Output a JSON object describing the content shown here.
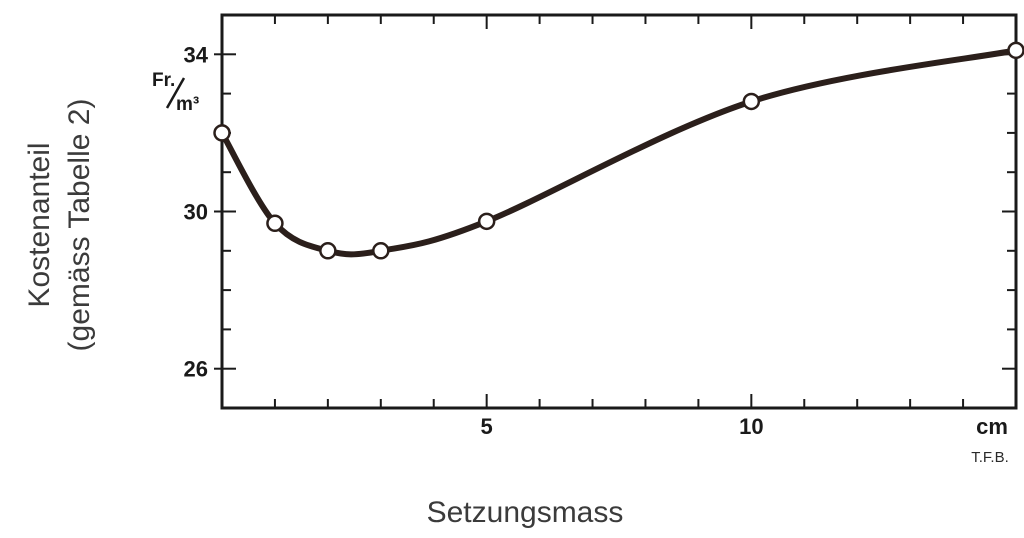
{
  "chart_data": {
    "type": "line",
    "title": "",
    "xlabel": "Setzungsmass",
    "ylabel_line1": "Kostenanteil",
    "ylabel_line2": "(gemäss Tabelle 2)",
    "x_unit": "cm",
    "y_unit_num": "Fr.",
    "y_unit_den": "m³",
    "source_note": "T.F.B.",
    "xlim": [
      0,
      15
    ],
    "ylim": [
      25,
      35
    ],
    "x_ticks": [
      5,
      10
    ],
    "x_unit_tick": 15,
    "y_ticks": [
      26,
      30,
      34
    ],
    "x_minor_step": 1,
    "y_minor_step": 1,
    "grid": false,
    "series": [
      {
        "x": [
          0,
          1,
          2,
          3,
          5,
          10,
          15
        ],
        "y": [
          32,
          29.7,
          29.0,
          29.0,
          29.75,
          32.8,
          34.1
        ]
      }
    ],
    "colors": {
      "line": "#2b1f1b",
      "frame": "#1a1a1a",
      "marker_fill": "#ffffff"
    }
  }
}
